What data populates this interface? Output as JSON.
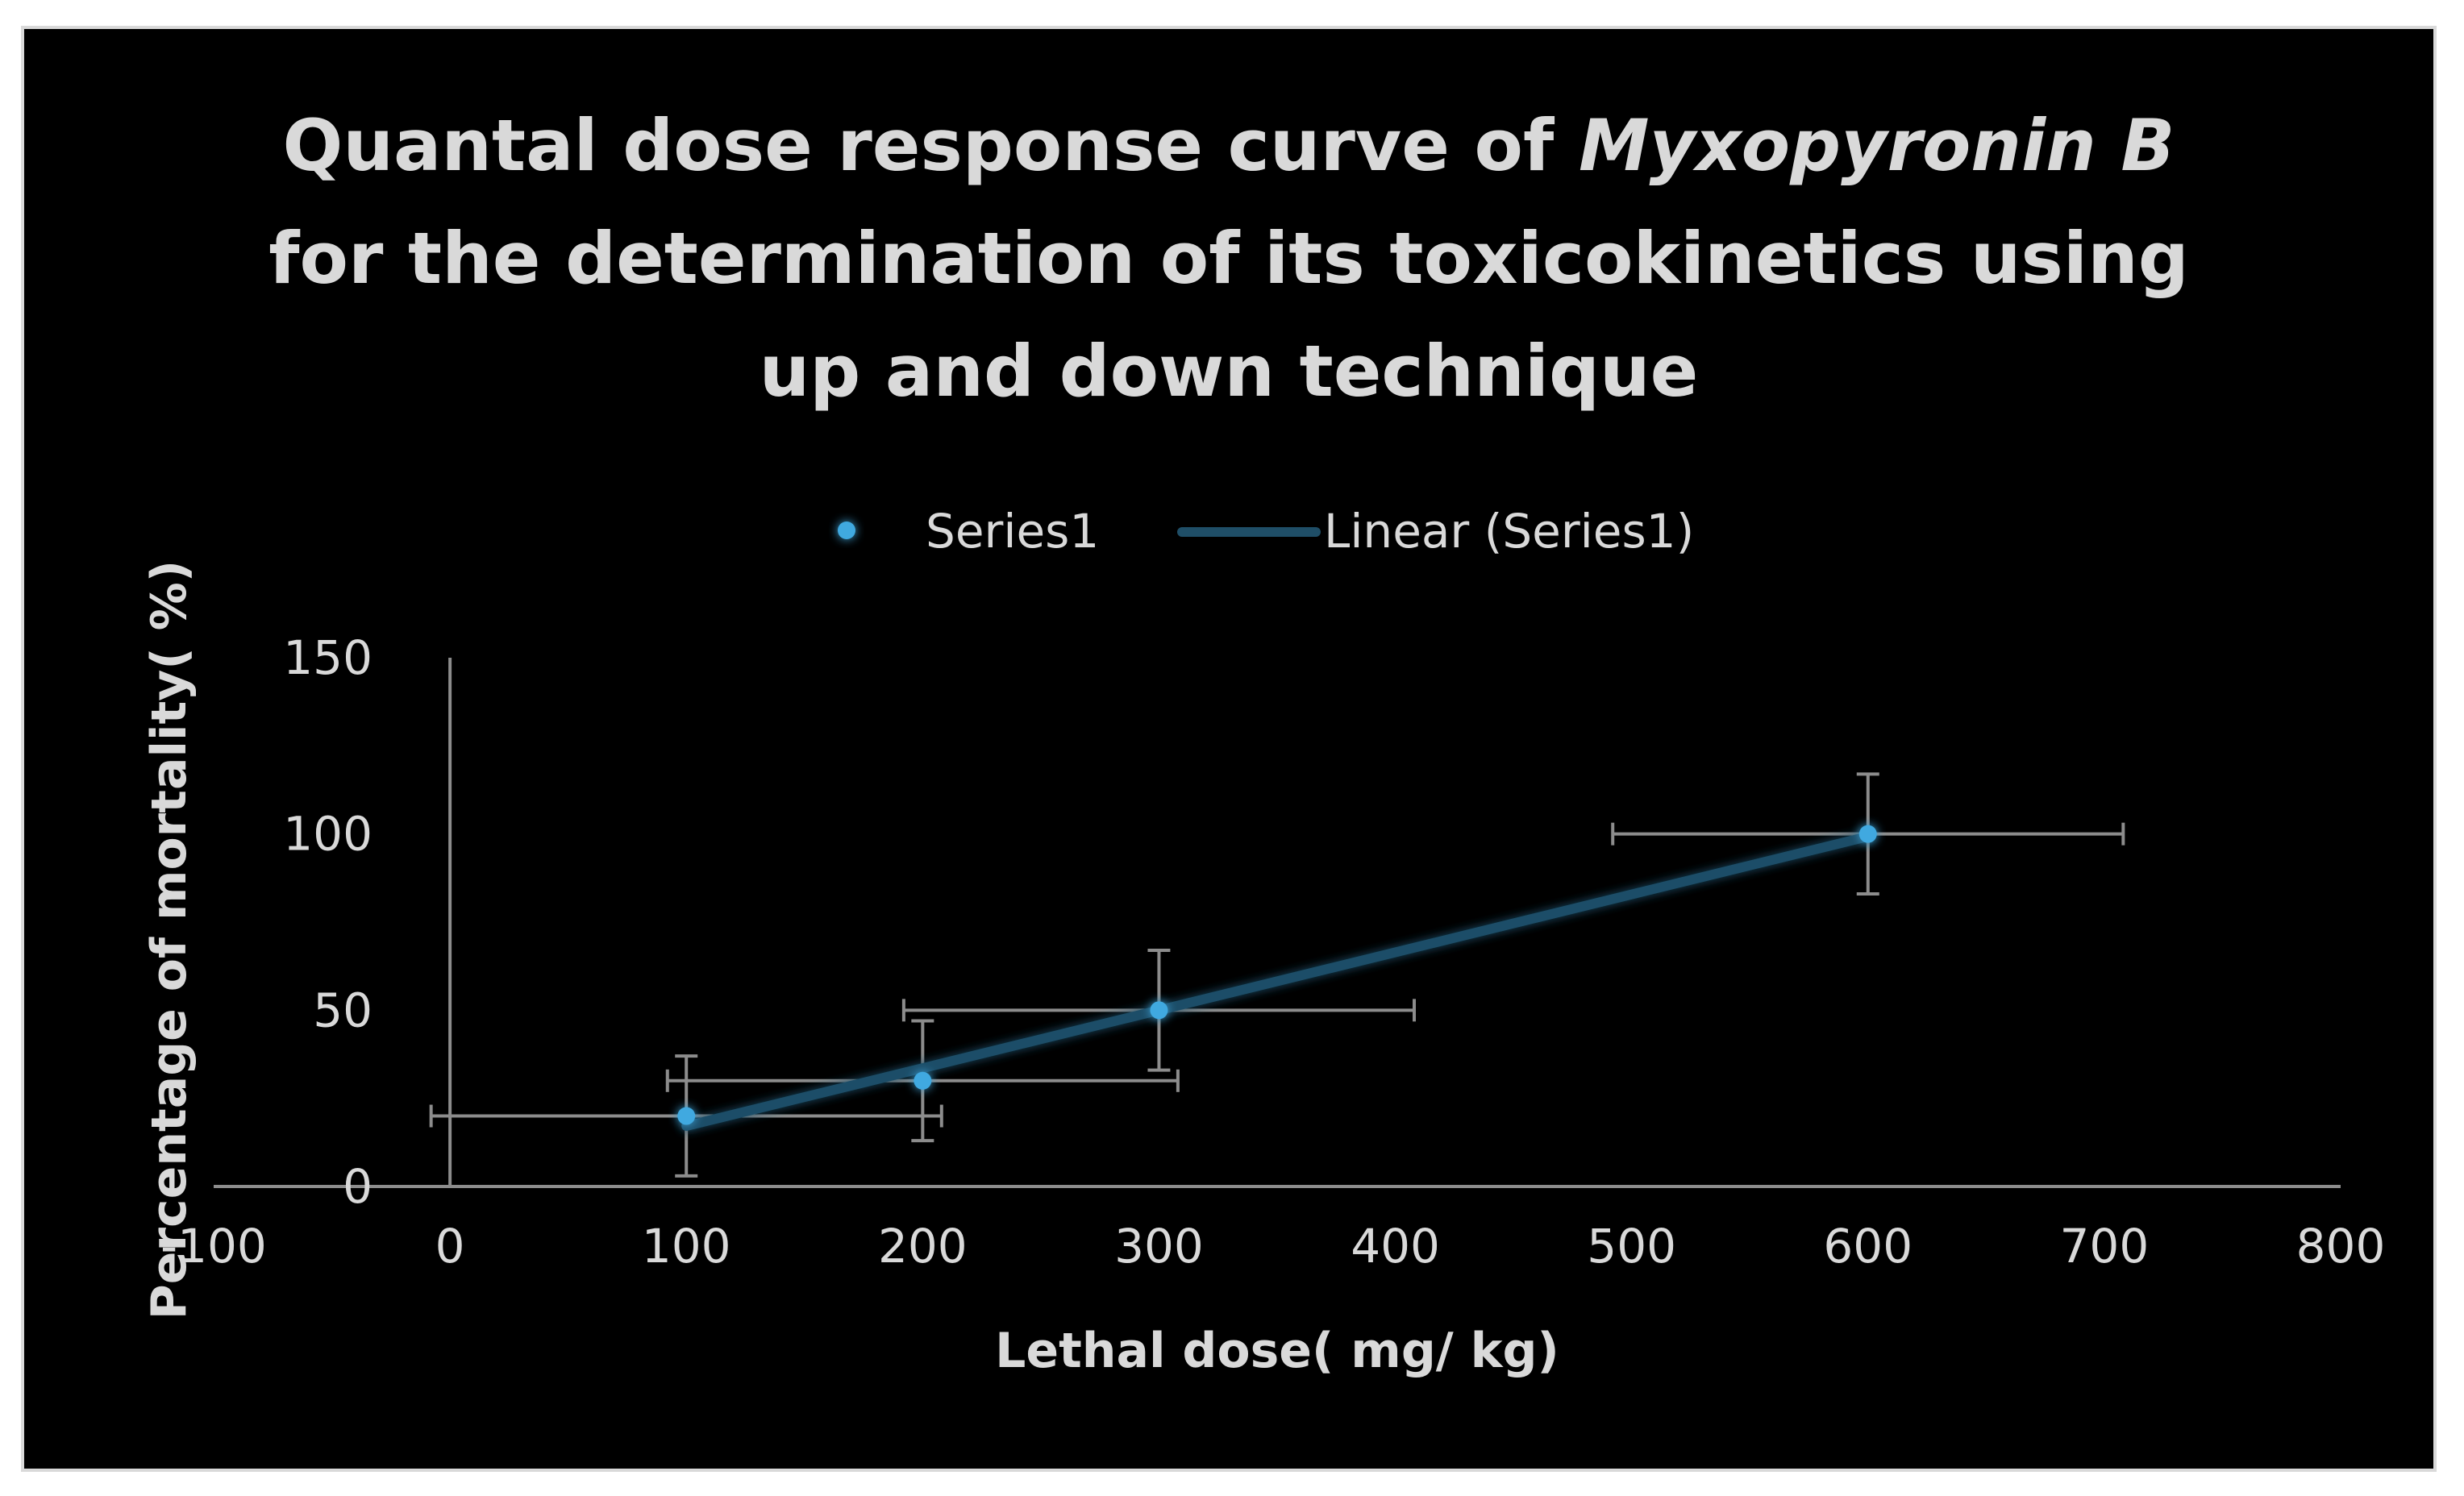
{
  "chart_data": {
    "type": "scatter",
    "title_lines": [
      {
        "plain": "Quantal dose response curve of ",
        "italic": "Myxopyronin B"
      },
      {
        "plain": "for the determination of its toxicokinetics using",
        "italic": ""
      },
      {
        "plain": "up and down technique",
        "italic": ""
      }
    ],
    "xlabel": "Lethal dose( mg/ kg)",
    "ylabel": "Percentage of mortality( %)",
    "xlim": [
      -100,
      800
    ],
    "ylim": [
      0,
      150
    ],
    "x_ticks": [
      "-100",
      "0",
      "100",
      "200",
      "300",
      "400",
      "500",
      "600",
      "700",
      "800"
    ],
    "y_ticks": [
      "0",
      "50",
      "100",
      "150"
    ],
    "legend_position": "top",
    "legend": {
      "series_label": "Series1",
      "trend_label": "Linear (Series1)"
    },
    "series": [
      {
        "name": "Series1",
        "x": [
          100,
          200,
          300,
          600
        ],
        "y": [
          20,
          30,
          50,
          100
        ],
        "x_error": [
          108,
          108,
          108,
          108
        ],
        "y_error": [
          17,
          17,
          17,
          17
        ]
      }
    ],
    "trendline": {
      "type": "linear",
      "series": "Series1"
    },
    "grid": false,
    "colors": {
      "background": "#000000",
      "frame_border": "#d9d9d9",
      "text": "#d9d9d9",
      "axis": "#8c8c8c",
      "error_bar": "#8c8c8c",
      "marker": "#3fa9e0",
      "trendline": "#1f4e67"
    }
  }
}
